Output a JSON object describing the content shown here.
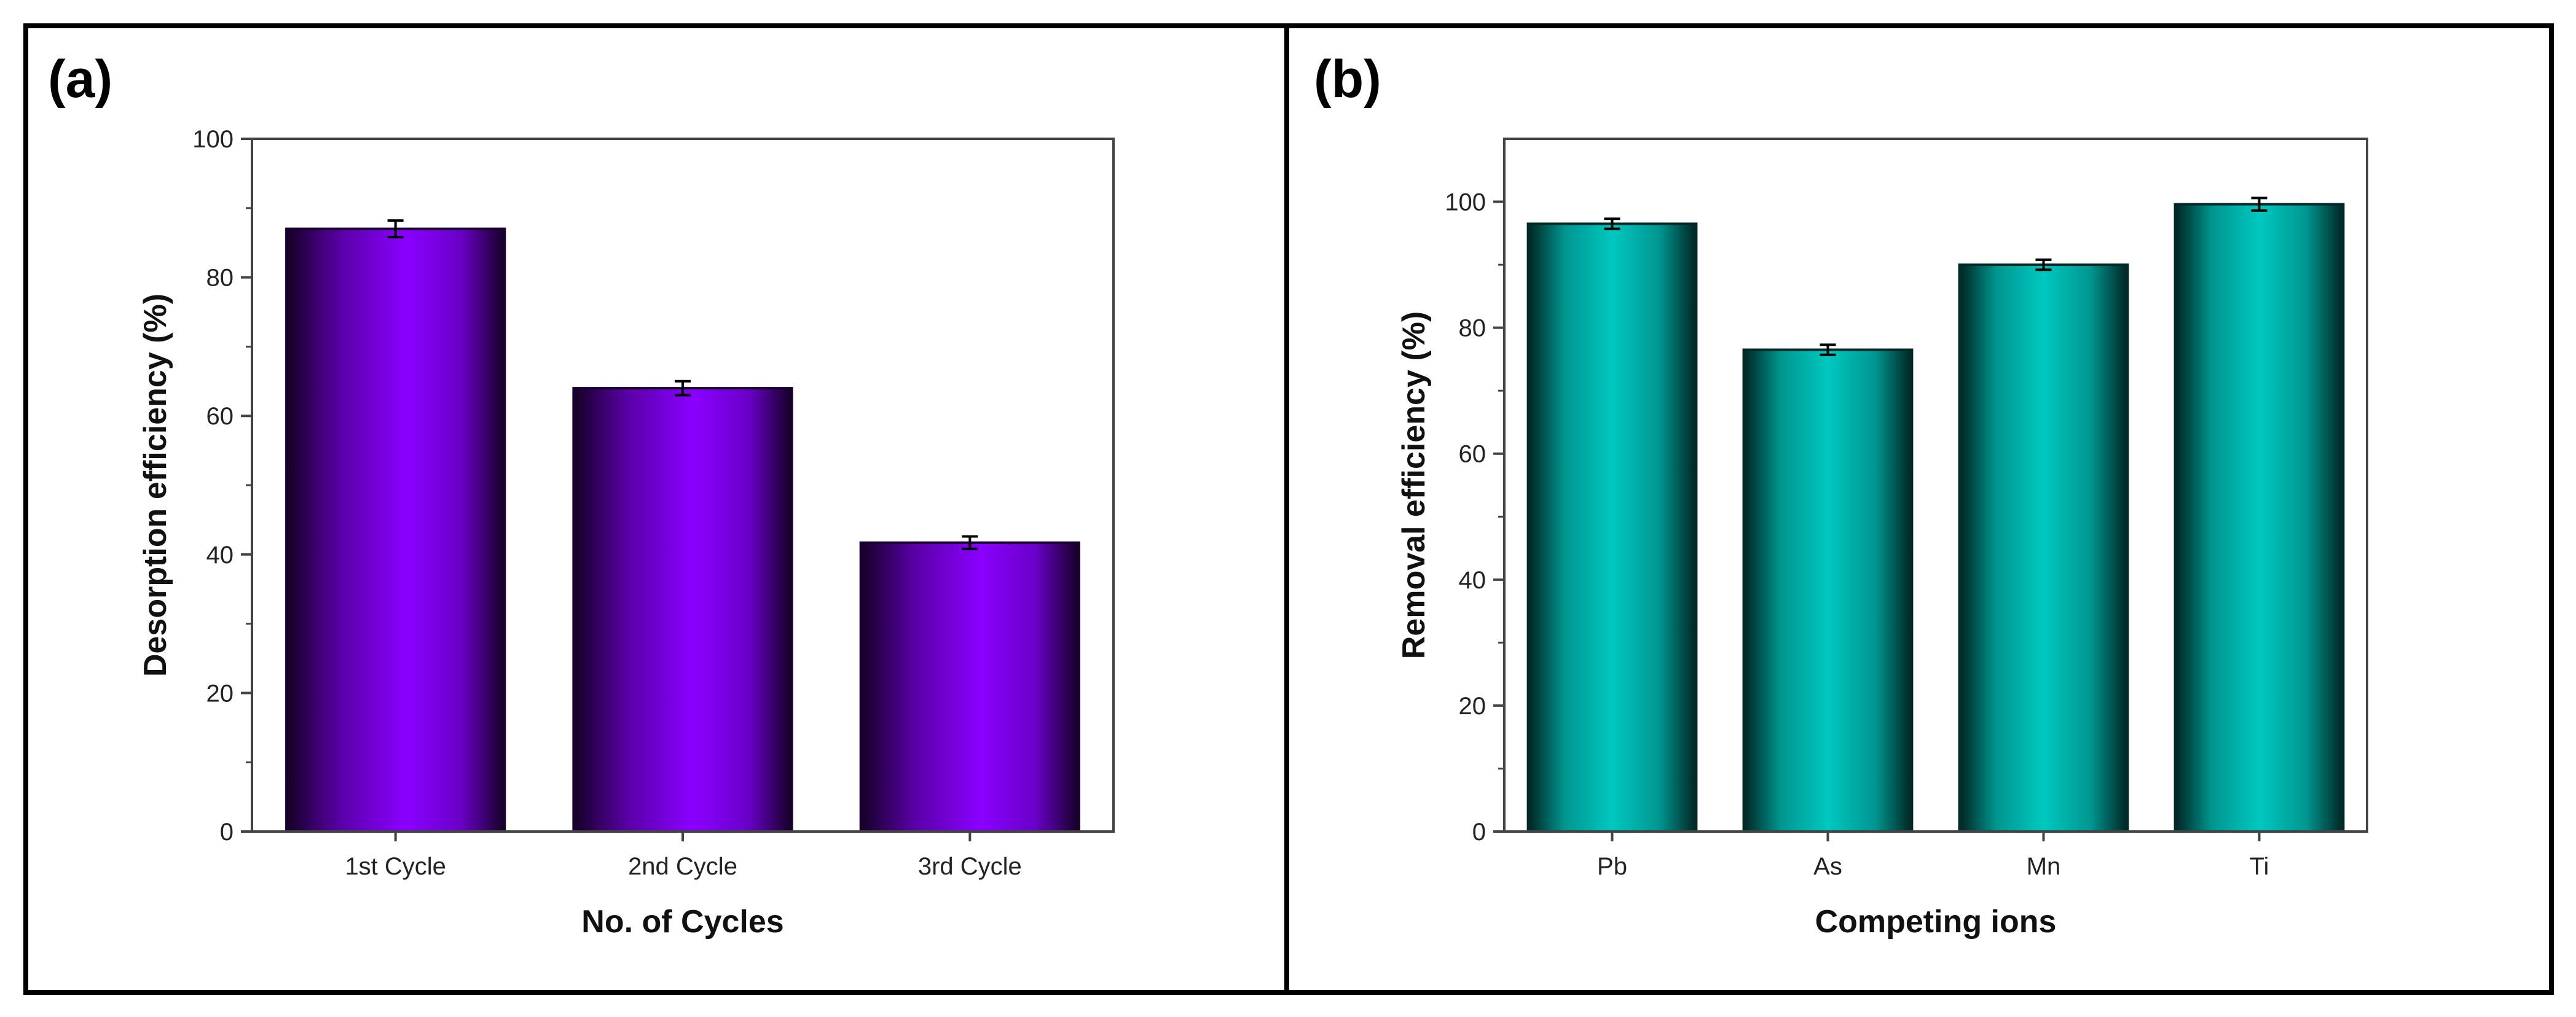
{
  "chart_data": [
    {
      "type": "bar",
      "panel_label": "(a)",
      "categories": [
        "1st Cycle",
        "2nd Cycle",
        "3rd Cycle"
      ],
      "values": [
        87,
        64,
        41.7
      ],
      "errors": [
        1.2,
        1.0,
        0.9
      ],
      "xlabel": "No. of Cycles",
      "ylabel": "Desorption efficiency (%)",
      "ylim": [
        0,
        100
      ],
      "yticks": [
        0,
        20,
        40,
        60,
        80,
        100
      ],
      "bar_color": "#8a00ff",
      "bar_edge_color": "#1a0030"
    },
    {
      "type": "bar",
      "panel_label": "(b)",
      "categories": [
        "Pb",
        "As",
        "Mn",
        "Ti"
      ],
      "values": [
        96.5,
        76.5,
        90,
        99.6
      ],
      "errors": [
        0.8,
        0.8,
        0.8,
        1.0
      ],
      "xlabel": "Competing ions",
      "ylabel": "Removal efficiency (%)",
      "ylim": [
        0,
        110
      ],
      "yticks": [
        0,
        20,
        40,
        60,
        80,
        100
      ],
      "bar_color": "#00c8c0",
      "bar_edge_color": "#002a28"
    }
  ]
}
